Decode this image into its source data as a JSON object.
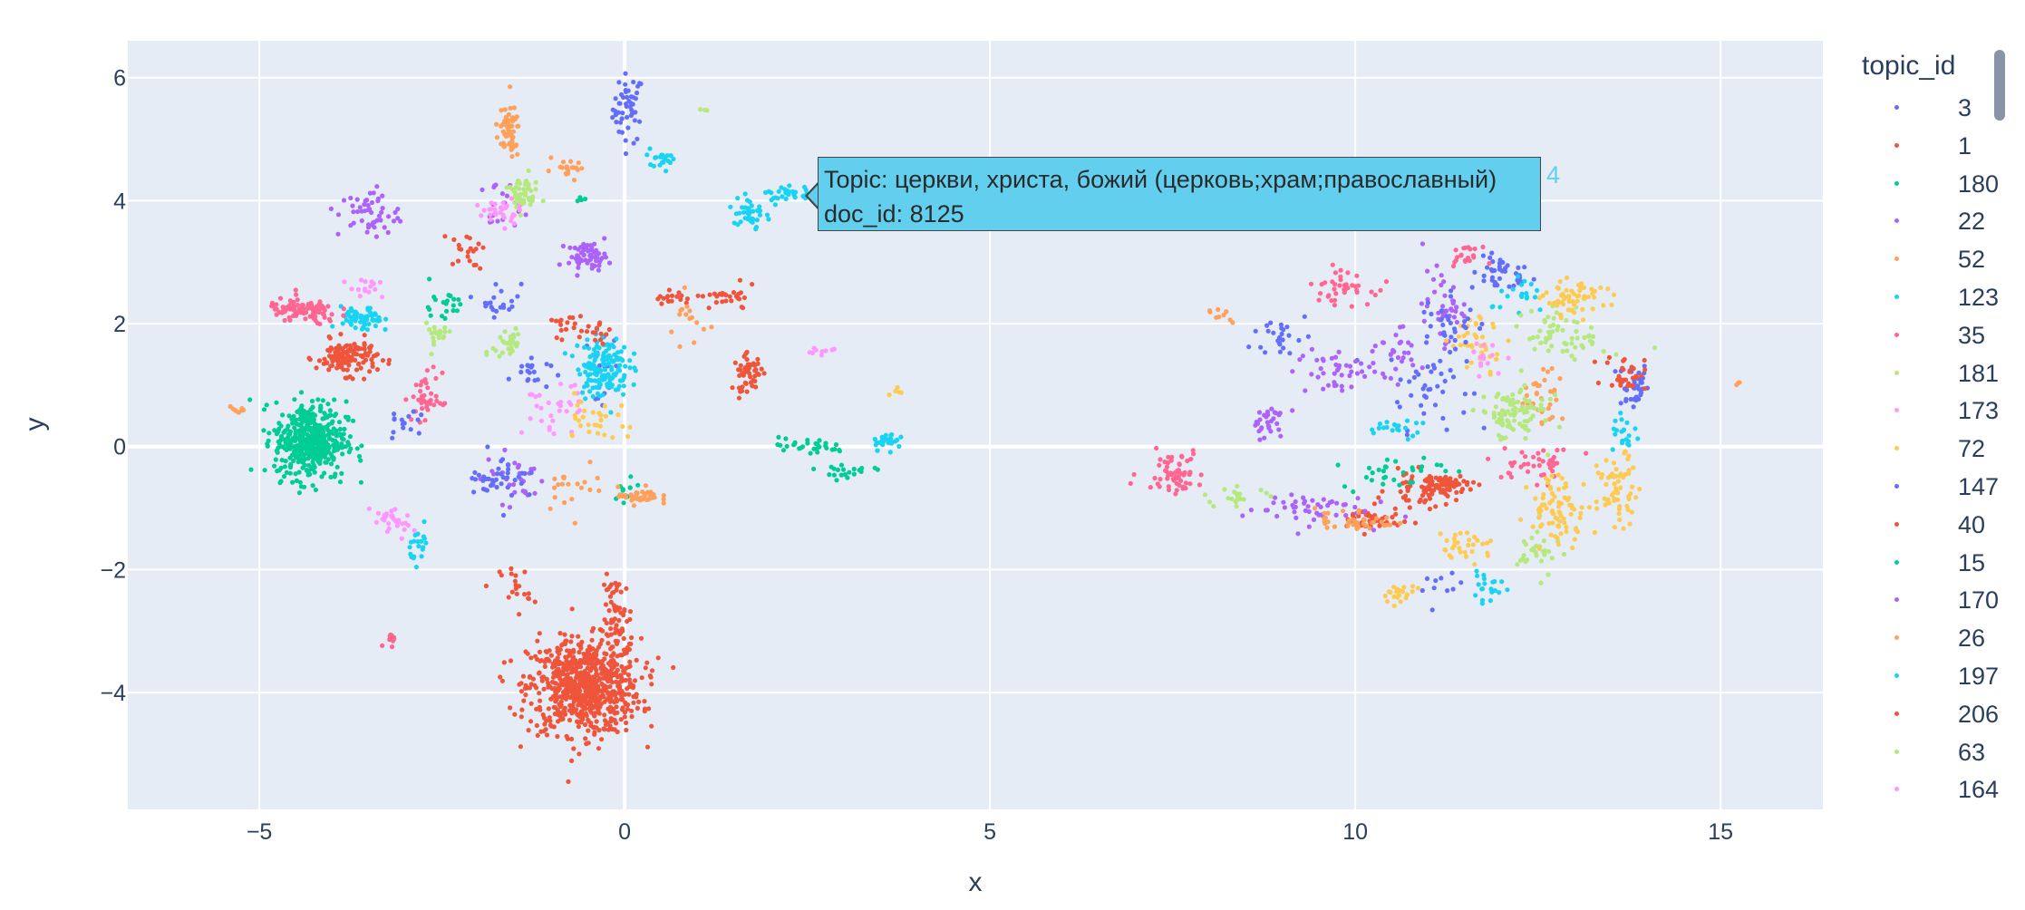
{
  "chart_data": {
    "type": "scatter",
    "title": "",
    "xlabel": "x",
    "ylabel": "y",
    "xlim": [
      -6.8,
      16.4
    ],
    "ylim": [
      -5.9,
      6.6
    ],
    "xticks": [
      -5,
      0,
      5,
      10,
      15
    ],
    "yticks": [
      -4,
      -2,
      0,
      2,
      4,
      6
    ],
    "xtick_labels": [
      "−5",
      "0",
      "5",
      "10",
      "15"
    ],
    "ytick_labels": [
      "−4",
      "−2",
      "0",
      "2",
      "4",
      "6"
    ],
    "grid": true,
    "legend_title": "topic_id",
    "legend_position": "right",
    "series": [
      {
        "name": "3",
        "color": "#636efa",
        "clusters": [
          [
            0.05,
            5.5,
            0.15,
            0.4,
            50
          ],
          [
            -0.3,
            1.2,
            0.15,
            0.5,
            20
          ],
          [
            12,
            2.8,
            0.3,
            0.2,
            40
          ],
          [
            13.8,
            1,
            0.15,
            0.3,
            40
          ],
          [
            9,
            1.8,
            0.3,
            0.3,
            25
          ],
          [
            11,
            1,
            0.4,
            0.5,
            40
          ],
          [
            -1.3,
            1.2,
            0.2,
            0.2,
            20
          ],
          [
            -1.7,
            2.4,
            0.2,
            0.2,
            20
          ],
          [
            11.2,
            -2.3,
            0.2,
            0.15,
            10
          ]
        ]
      },
      {
        "name": "1",
        "color": "#ef553b",
        "clusters": [
          [
            -0.55,
            -3.9,
            0.55,
            0.55,
            750
          ],
          [
            -0.1,
            -2.8,
            0.15,
            0.5,
            60
          ],
          [
            -1.5,
            -2.3,
            0.15,
            0.3,
            20
          ],
          [
            1.7,
            1.2,
            0.15,
            0.2,
            50
          ],
          [
            -3.8,
            1.45,
            0.3,
            0.2,
            130
          ],
          [
            1.4,
            2.4,
            0.3,
            0.15,
            30
          ],
          [
            10.2,
            -1.2,
            0.3,
            0.15,
            50
          ],
          [
            11,
            -0.7,
            0.4,
            0.2,
            60
          ],
          [
            13.7,
            1.2,
            0.2,
            0.2,
            30
          ]
        ]
      },
      {
        "name": "180",
        "color": "#00cc96",
        "clusters": [
          [
            -4.3,
            0.1,
            0.35,
            0.45,
            450
          ],
          [
            2.5,
            0,
            0.4,
            0.1,
            30
          ],
          [
            0,
            -0.7,
            0.2,
            0.2,
            10
          ],
          [
            10.5,
            -0.4,
            0.5,
            0.2,
            30
          ]
        ]
      },
      {
        "name": "22",
        "color": "#ab63fa",
        "clusters": [
          [
            -0.5,
            3.1,
            0.2,
            0.15,
            60
          ],
          [
            -3.5,
            3.8,
            0.3,
            0.3,
            50
          ],
          [
            -1.7,
            3.9,
            0.2,
            0.3,
            20
          ],
          [
            11.2,
            2.3,
            0.2,
            0.4,
            40
          ],
          [
            9.7,
            1.2,
            0.4,
            0.3,
            40
          ],
          [
            9.3,
            -1,
            0.6,
            0.2,
            50
          ],
          [
            -1.5,
            -0.5,
            0.3,
            0.3,
            30
          ]
        ]
      },
      {
        "name": "52",
        "color": "#ffa15a",
        "clusters": [
          [
            -1.6,
            5.1,
            0.12,
            0.3,
            60
          ],
          [
            0.2,
            -0.8,
            0.2,
            0.1,
            40
          ],
          [
            10,
            -1.2,
            0.4,
            0.15,
            40
          ],
          [
            12.6,
            0.8,
            0.2,
            0.3,
            30
          ],
          [
            -5.3,
            0.6,
            0.1,
            0.05,
            10
          ],
          [
            -0.7,
            -0.6,
            0.3,
            0.3,
            20
          ]
        ]
      },
      {
        "name": "123",
        "color": "#19d3f3",
        "clusters": [
          [
            -0.3,
            1.3,
            0.25,
            0.35,
            150
          ],
          [
            1.7,
            3.8,
            0.15,
            0.25,
            40
          ],
          [
            2.3,
            4.1,
            0.3,
            0.1,
            30
          ],
          [
            0.5,
            4.7,
            0.15,
            0.1,
            20
          ],
          [
            -3.6,
            2.05,
            0.2,
            0.15,
            60
          ],
          [
            3.6,
            0.1,
            0.15,
            0.1,
            30
          ],
          [
            -2.8,
            -1.6,
            0.1,
            0.2,
            20
          ],
          [
            12.3,
            2.4,
            0.3,
            0.2,
            20
          ],
          [
            13.7,
            0.2,
            0.15,
            0.2,
            20
          ]
        ]
      },
      {
        "name": "35",
        "color": "#ff6692",
        "clusters": [
          [
            -4.4,
            2.2,
            0.35,
            0.15,
            100
          ],
          [
            7.5,
            -0.4,
            0.3,
            0.25,
            60
          ],
          [
            9.8,
            2.6,
            0.3,
            0.2,
            40
          ],
          [
            11.5,
            3.1,
            0.15,
            0.1,
            20
          ],
          [
            -2.7,
            0.8,
            0.15,
            0.3,
            40
          ],
          [
            12.5,
            -0.3,
            0.4,
            0.2,
            40
          ],
          [
            -3.2,
            -3.1,
            0.07,
            0.1,
            10
          ]
        ]
      },
      {
        "name": "181",
        "color": "#b6e880",
        "clusters": [
          [
            -1.4,
            4.1,
            0.15,
            0.2,
            50
          ],
          [
            12.1,
            0.5,
            0.3,
            0.3,
            70
          ],
          [
            12.9,
            1.8,
            0.4,
            0.3,
            60
          ],
          [
            -1.6,
            1.7,
            0.15,
            0.25,
            30
          ],
          [
            -2.6,
            1.8,
            0.15,
            0.15,
            20
          ],
          [
            12.5,
            -1.7,
            0.2,
            0.3,
            30
          ],
          [
            1.1,
            5.5,
            0.05,
            0.05,
            3
          ]
        ]
      },
      {
        "name": "173",
        "color": "#ff97ff",
        "clusters": [
          [
            -1.7,
            3.8,
            0.2,
            0.15,
            30
          ],
          [
            -3.2,
            -1.2,
            0.2,
            0.2,
            30
          ],
          [
            -1,
            0.6,
            0.3,
            0.3,
            30
          ],
          [
            2.7,
            1.55,
            0.2,
            0.05,
            10
          ]
        ]
      },
      {
        "name": "72",
        "color": "#fecb52",
        "clusters": [
          [
            13,
            2.4,
            0.3,
            0.2,
            60
          ],
          [
            13.6,
            -0.7,
            0.2,
            0.4,
            60
          ],
          [
            12.8,
            -1,
            0.3,
            0.4,
            80
          ],
          [
            11.5,
            -1.6,
            0.3,
            0.2,
            30
          ],
          [
            10.6,
            -2.4,
            0.15,
            0.1,
            20
          ],
          [
            11.7,
            1.7,
            0.3,
            0.3,
            40
          ],
          [
            -0.4,
            0.5,
            0.3,
            0.3,
            30
          ],
          [
            3.7,
            0.9,
            0.1,
            0.05,
            5
          ]
        ]
      },
      {
        "name": "147",
        "color": "#636efa",
        "clusters": [
          [
            -1.7,
            -0.5,
            0.3,
            0.3,
            40
          ],
          [
            11.3,
            2,
            0.3,
            0.4,
            30
          ],
          [
            -3,
            0.3,
            0.2,
            0.2,
            15
          ]
        ]
      },
      {
        "name": "40",
        "color": "#ef553b",
        "clusters": [
          [
            11.2,
            -0.6,
            0.3,
            0.1,
            40
          ],
          [
            -2.2,
            3.2,
            0.2,
            0.2,
            20
          ],
          [
            -0.4,
            1.9,
            0.15,
            0.15,
            15
          ]
        ]
      },
      {
        "name": "15",
        "color": "#00cc96",
        "clusters": [
          [
            -2.5,
            2.3,
            0.2,
            0.2,
            20
          ],
          [
            -0.6,
            4,
            0.05,
            0.05,
            5
          ],
          [
            3,
            -0.4,
            0.3,
            0.1,
            20
          ]
        ]
      },
      {
        "name": "170",
        "color": "#ab63fa",
        "clusters": [
          [
            8.8,
            0.4,
            0.2,
            0.2,
            30
          ],
          [
            10.5,
            1.5,
            0.3,
            0.3,
            30
          ]
        ]
      },
      {
        "name": "26",
        "color": "#ffa15a",
        "clusters": [
          [
            -0.8,
            4.5,
            0.2,
            0.1,
            20
          ],
          [
            0.9,
            2,
            0.2,
            0.3,
            15
          ],
          [
            8.1,
            2.1,
            0.15,
            0.1,
            10
          ],
          [
            15.2,
            1.05,
            0.05,
            0.05,
            3
          ]
        ]
      },
      {
        "name": "197",
        "color": "#19d3f3",
        "clusters": [
          [
            11.8,
            -2.3,
            0.2,
            0.15,
            20
          ],
          [
            10.5,
            0.3,
            0.3,
            0.1,
            20
          ]
        ]
      },
      {
        "name": "206",
        "color": "#ef553b",
        "clusters": [
          [
            0.6,
            2.4,
            0.15,
            0.1,
            15
          ],
          [
            -0.8,
            2,
            0.2,
            0.2,
            15
          ]
        ]
      },
      {
        "name": "63",
        "color": "#b6e880",
        "clusters": [
          [
            8.4,
            -0.8,
            0.3,
            0.1,
            20
          ],
          [
            12.4,
            0.6,
            0.3,
            0.2,
            20
          ]
        ]
      },
      {
        "name": "164",
        "color": "#ff97ff",
        "clusters": [
          [
            -3.5,
            2.6,
            0.2,
            0.15,
            15
          ],
          [
            11.8,
            1.4,
            0.2,
            0.2,
            15
          ]
        ]
      }
    ]
  },
  "tooltip": {
    "line1": "Topic: церкви, христа, божий (церковь;храм;православный)",
    "line2": "doc_id: 8125",
    "trace_label": "4",
    "color": "#62cfef"
  },
  "colors": {
    "plot_bg": "#e5ecf6",
    "grid": "#ffffff",
    "text": "#2a3f5f"
  }
}
